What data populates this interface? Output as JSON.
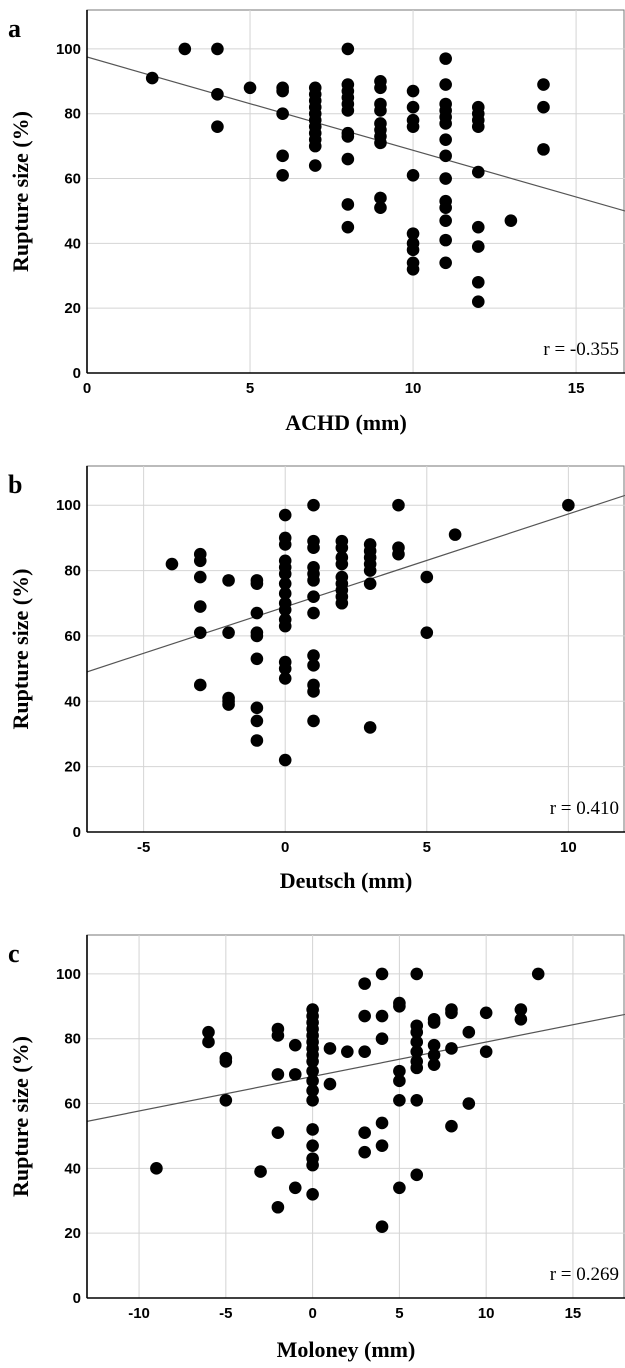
{
  "chart_data": [
    {
      "panel": "a",
      "type": "scatter",
      "xlabel": "ACHD (mm)",
      "ylabel": "Rupture size (%)",
      "annotation": "r = -0.355",
      "xlim": [
        0,
        16.5
      ],
      "ylim": [
        0,
        112
      ],
      "xticks": [
        0,
        5,
        10,
        15
      ],
      "yticks": [
        0,
        20,
        40,
        60,
        80,
        100
      ],
      "grid": true,
      "fit_line": {
        "x": [
          0,
          16.5
        ],
        "y": [
          97.5,
          50
        ]
      },
      "points": [
        [
          2,
          91
        ],
        [
          3,
          100
        ],
        [
          4,
          100
        ],
        [
          4,
          86
        ],
        [
          4,
          76
        ],
        [
          5,
          88
        ],
        [
          6,
          88
        ],
        [
          6,
          87
        ],
        [
          6,
          80
        ],
        [
          6,
          67
        ],
        [
          6,
          61
        ],
        [
          7,
          88
        ],
        [
          7,
          86
        ],
        [
          7,
          84
        ],
        [
          7,
          82
        ],
        [
          7,
          80
        ],
        [
          7,
          78
        ],
        [
          7,
          76
        ],
        [
          7,
          74
        ],
        [
          7,
          72
        ],
        [
          7,
          70
        ],
        [
          7,
          64
        ],
        [
          8,
          100
        ],
        [
          8,
          89
        ],
        [
          8,
          87
        ],
        [
          8,
          85
        ],
        [
          8,
          83
        ],
        [
          8,
          81
        ],
        [
          8,
          74
        ],
        [
          8,
          73
        ],
        [
          8,
          66
        ],
        [
          8,
          52
        ],
        [
          8,
          45
        ],
        [
          9,
          90
        ],
        [
          9,
          88
        ],
        [
          9,
          83
        ],
        [
          9,
          81
        ],
        [
          9,
          77
        ],
        [
          9,
          75
        ],
        [
          9,
          73
        ],
        [
          9,
          71
        ],
        [
          9,
          54
        ],
        [
          9,
          51
        ],
        [
          10,
          87
        ],
        [
          10,
          82
        ],
        [
          10,
          78
        ],
        [
          10,
          76
        ],
        [
          10,
          61
        ],
        [
          10,
          43
        ],
        [
          10,
          40
        ],
        [
          10,
          38
        ],
        [
          10,
          34
        ],
        [
          10,
          32
        ],
        [
          11,
          97
        ],
        [
          11,
          89
        ],
        [
          11,
          83
        ],
        [
          11,
          81
        ],
        [
          11,
          79
        ],
        [
          11,
          77
        ],
        [
          11,
          72
        ],
        [
          11,
          67
        ],
        [
          11,
          60
        ],
        [
          11,
          53
        ],
        [
          11,
          51
        ],
        [
          11,
          47
        ],
        [
          11,
          41
        ],
        [
          11,
          34
        ],
        [
          12,
          82
        ],
        [
          12,
          80
        ],
        [
          12,
          78
        ],
        [
          12,
          76
        ],
        [
          12,
          62
        ],
        [
          12,
          45
        ],
        [
          12,
          39
        ],
        [
          12,
          28
        ],
        [
          12,
          22
        ],
        [
          13,
          47
        ],
        [
          14,
          89
        ],
        [
          14,
          82
        ],
        [
          14,
          69
        ]
      ]
    },
    {
      "panel": "b",
      "type": "scatter",
      "xlabel": "Deutsch (mm)",
      "ylabel": "Rupture size (%)",
      "annotation": "r = 0.410",
      "xlim": [
        -7,
        12
      ],
      "ylim": [
        0,
        112
      ],
      "xticks": [
        -5,
        0,
        5,
        10
      ],
      "yticks": [
        0,
        20,
        40,
        60,
        80,
        100
      ],
      "grid": true,
      "fit_line": {
        "x": [
          -7,
          12
        ],
        "y": [
          49,
          103
        ]
      },
      "points": [
        [
          -4,
          82
        ],
        [
          -3,
          85
        ],
        [
          -3,
          83
        ],
        [
          -3,
          78
        ],
        [
          -3,
          69
        ],
        [
          -3,
          61
        ],
        [
          -3,
          45
        ],
        [
          -2,
          77
        ],
        [
          -2,
          61
        ],
        [
          -2,
          41
        ],
        [
          -2,
          40
        ],
        [
          -2,
          39
        ],
        [
          -1,
          77
        ],
        [
          -1,
          76
        ],
        [
          -1,
          67
        ],
        [
          -1,
          61
        ],
        [
          -1,
          60
        ],
        [
          -1,
          53
        ],
        [
          -1,
          38
        ],
        [
          -1,
          34
        ],
        [
          -1,
          28
        ],
        [
          0,
          97
        ],
        [
          0,
          90
        ],
        [
          0,
          88
        ],
        [
          0,
          83
        ],
        [
          0,
          81
        ],
        [
          0,
          79
        ],
        [
          0,
          76
        ],
        [
          0,
          73
        ],
        [
          0,
          70
        ],
        [
          0,
          68
        ],
        [
          0,
          65
        ],
        [
          0,
          63
        ],
        [
          0,
          52
        ],
        [
          0,
          50
        ],
        [
          0,
          47
        ],
        [
          0,
          22
        ],
        [
          1,
          100
        ],
        [
          1,
          89
        ],
        [
          1,
          87
        ],
        [
          1,
          81
        ],
        [
          1,
          79
        ],
        [
          1,
          77
        ],
        [
          1,
          72
        ],
        [
          1,
          67
        ],
        [
          1,
          54
        ],
        [
          1,
          51
        ],
        [
          1,
          45
        ],
        [
          1,
          43
        ],
        [
          1,
          34
        ],
        [
          2,
          89
        ],
        [
          2,
          87
        ],
        [
          2,
          84
        ],
        [
          2,
          82
        ],
        [
          2,
          78
        ],
        [
          2,
          76
        ],
        [
          2,
          74
        ],
        [
          2,
          72
        ],
        [
          2,
          70
        ],
        [
          3,
          88
        ],
        [
          3,
          86
        ],
        [
          3,
          84
        ],
        [
          3,
          82
        ],
        [
          3,
          80
        ],
        [
          3,
          76
        ],
        [
          3,
          32
        ],
        [
          4,
          100
        ],
        [
          4,
          87
        ],
        [
          4,
          85
        ],
        [
          5,
          78
        ],
        [
          5,
          61
        ],
        [
          6,
          91
        ],
        [
          10,
          100
        ]
      ]
    },
    {
      "panel": "c",
      "type": "scatter",
      "xlabel": "Moloney (mm)",
      "ylabel": "Rupture size (%)",
      "annotation": "r = 0.269",
      "xlim": [
        -13,
        18
      ],
      "ylim": [
        0,
        112
      ],
      "xticks": [
        -10,
        -5,
        0,
        5,
        10,
        15
      ],
      "yticks": [
        0,
        20,
        40,
        60,
        80,
        100
      ],
      "grid": true,
      "fit_line": {
        "x": [
          -13,
          18
        ],
        "y": [
          54.5,
          87.5
        ]
      },
      "points": [
        [
          -9,
          40
        ],
        [
          -6,
          82
        ],
        [
          -6,
          79
        ],
        [
          -5,
          74
        ],
        [
          -5,
          73
        ],
        [
          -5,
          61
        ],
        [
          -3,
          39
        ],
        [
          -2,
          83
        ],
        [
          -2,
          81
        ],
        [
          -2,
          69
        ],
        [
          -2,
          51
        ],
        [
          -2,
          28
        ],
        [
          -1,
          78
        ],
        [
          -1,
          69
        ],
        [
          -1,
          34
        ],
        [
          0,
          89
        ],
        [
          0,
          87
        ],
        [
          0,
          85
        ],
        [
          0,
          83
        ],
        [
          0,
          81
        ],
        [
          0,
          79
        ],
        [
          0,
          77
        ],
        [
          0,
          75
        ],
        [
          0,
          73
        ],
        [
          0,
          70
        ],
        [
          0,
          67
        ],
        [
          0,
          64
        ],
        [
          0,
          61
        ],
        [
          0,
          52
        ],
        [
          0,
          47
        ],
        [
          0,
          43
        ],
        [
          0,
          41
        ],
        [
          0,
          32
        ],
        [
          1,
          77
        ],
        [
          1,
          66
        ],
        [
          2,
          76
        ],
        [
          3,
          97
        ],
        [
          3,
          87
        ],
        [
          3,
          76
        ],
        [
          3,
          51
        ],
        [
          3,
          45
        ],
        [
          4,
          100
        ],
        [
          4,
          87
        ],
        [
          4,
          80
        ],
        [
          4,
          54
        ],
        [
          4,
          47
        ],
        [
          4,
          22
        ],
        [
          5,
          91
        ],
        [
          5,
          90
        ],
        [
          5,
          70
        ],
        [
          5,
          67
        ],
        [
          5,
          61
        ],
        [
          5,
          34
        ],
        [
          6,
          100
        ],
        [
          6,
          84
        ],
        [
          6,
          82
        ],
        [
          6,
          79
        ],
        [
          6,
          76
        ],
        [
          6,
          73
        ],
        [
          6,
          71
        ],
        [
          6,
          61
        ],
        [
          6,
          38
        ],
        [
          7,
          86
        ],
        [
          7,
          85
        ],
        [
          7,
          78
        ],
        [
          7,
          75
        ],
        [
          7,
          72
        ],
        [
          8,
          89
        ],
        [
          8,
          88
        ],
        [
          8,
          77
        ],
        [
          8,
          53
        ],
        [
          9,
          82
        ],
        [
          9,
          60
        ],
        [
          10,
          88
        ],
        [
          10,
          76
        ],
        [
          12,
          89
        ],
        [
          12,
          86
        ],
        [
          13,
          100
        ]
      ]
    }
  ]
}
